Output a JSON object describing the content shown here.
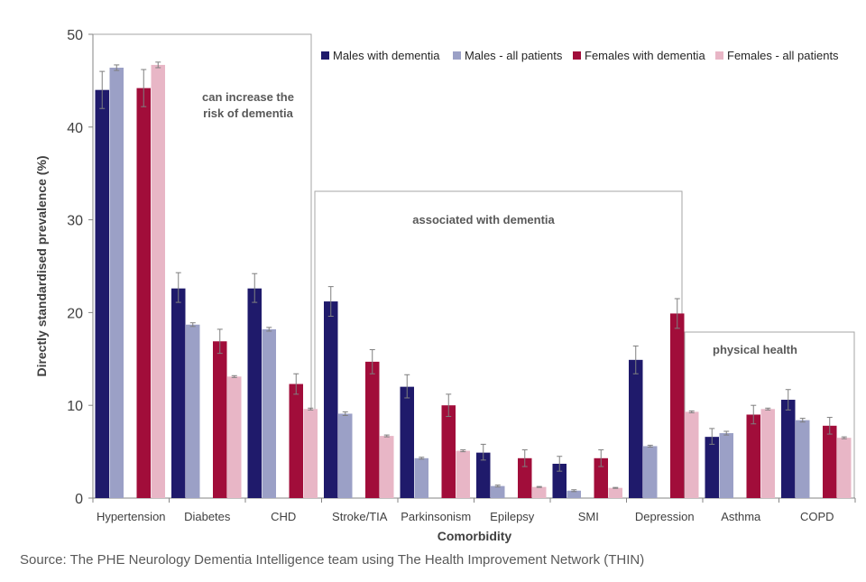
{
  "chart_data": {
    "type": "bar",
    "ylabel": "Directly standardised prevalence  (%)",
    "xlabel": "Comorbidity",
    "ylim": [
      0,
      50
    ],
    "yticks": [
      0,
      10,
      20,
      30,
      40,
      50
    ],
    "categories": [
      "Hypertension",
      "Diabetes",
      "CHD",
      "Stroke/TIA",
      "Parkinsonism",
      "Epilepsy",
      "SMI",
      "Depression",
      "Asthma",
      "COPD"
    ],
    "series": [
      {
        "name": "Males with dementia",
        "color": "#1F1A6B",
        "values": [
          44.0,
          22.6,
          22.6,
          21.2,
          12.0,
          4.9,
          3.7,
          14.9,
          6.6,
          10.6
        ],
        "err_low": [
          2.0,
          1.5,
          1.5,
          1.6,
          1.2,
          0.8,
          0.8,
          1.5,
          0.8,
          1.1
        ],
        "err_high": [
          2.0,
          1.7,
          1.6,
          1.6,
          1.3,
          0.9,
          0.8,
          1.5,
          0.9,
          1.1
        ]
      },
      {
        "name": "Males - all patients",
        "color": "#9BA0C6",
        "values": [
          46.4,
          18.7,
          18.2,
          9.1,
          4.3,
          1.3,
          0.8,
          5.6,
          7.0,
          8.4
        ],
        "err_low": [
          0.3,
          0.2,
          0.2,
          0.2,
          0.1,
          0.1,
          0.1,
          0.1,
          0.2,
          0.2
        ],
        "err_high": [
          0.3,
          0.2,
          0.2,
          0.2,
          0.1,
          0.1,
          0.1,
          0.1,
          0.2,
          0.2
        ]
      },
      {
        "name": "Females with dementia",
        "color": "#A10D3A",
        "values": [
          44.2,
          16.9,
          12.3,
          14.7,
          10.0,
          4.3,
          4.3,
          19.9,
          9.0,
          7.8
        ],
        "err_low": [
          2.0,
          1.3,
          1.1,
          1.3,
          1.2,
          0.9,
          0.9,
          1.6,
          1.0,
          0.9
        ],
        "err_high": [
          2.0,
          1.3,
          1.1,
          1.3,
          1.2,
          0.9,
          0.9,
          1.6,
          1.0,
          0.9
        ]
      },
      {
        "name": "Females - all patients",
        "color": "#E8B6C6",
        "values": [
          46.7,
          13.1,
          9.6,
          6.7,
          5.1,
          1.2,
          1.1,
          9.3,
          9.6,
          6.5
        ],
        "err_low": [
          0.3,
          0.1,
          0.1,
          0.1,
          0.1,
          0.05,
          0.05,
          0.1,
          0.1,
          0.1
        ],
        "err_high": [
          0.3,
          0.1,
          0.1,
          0.1,
          0.1,
          0.05,
          0.05,
          0.1,
          0.1,
          0.1
        ]
      }
    ],
    "group_boxes": [
      {
        "label_lines": [
          "can increase the",
          "risk of dementia"
        ],
        "start": 0,
        "end": 2
      },
      {
        "label_lines": [
          "associated with dementia"
        ],
        "start": 3,
        "end": 7
      },
      {
        "label_lines": [
          "physical health"
        ],
        "start": 8,
        "end": 9
      }
    ],
    "legend_position": "top-right"
  },
  "source": "Source: The PHE Neurology Dementia Intelligence team using The Health Improvement Network (THIN)"
}
